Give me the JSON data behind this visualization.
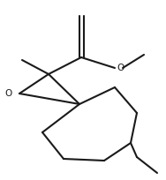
{
  "background_color": "#ffffff",
  "line_color": "#1a1a1a",
  "line_width": 1.5,
  "figure_width": 1.88,
  "figure_height": 2.04,
  "dpi": 100
}
